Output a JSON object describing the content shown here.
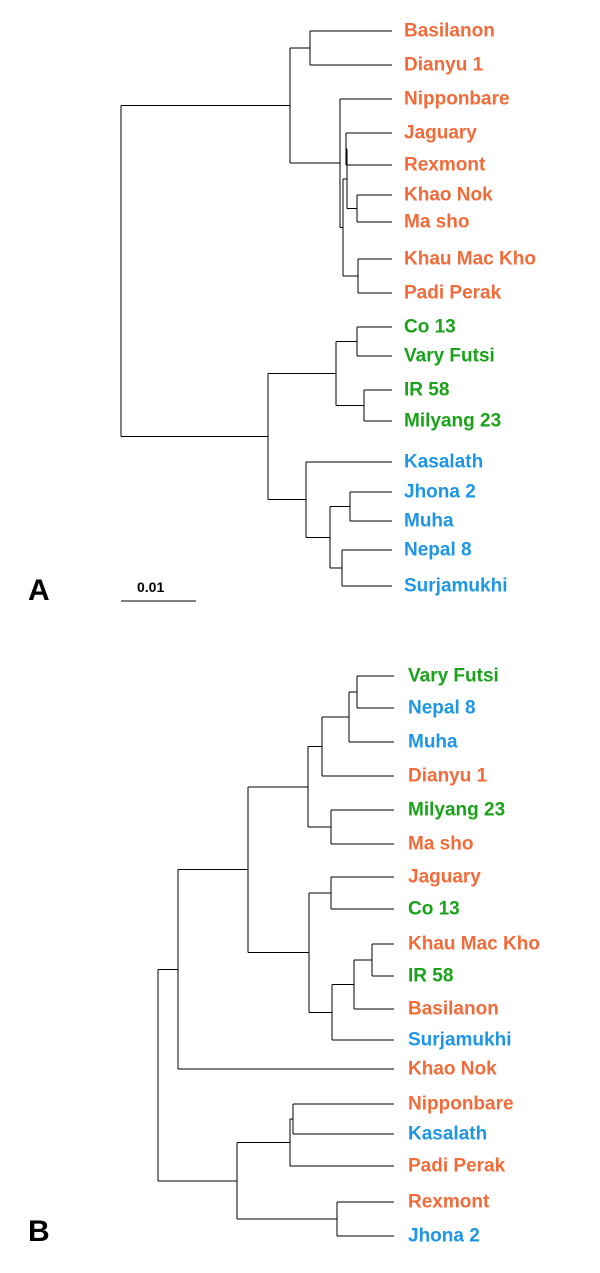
{
  "colors": {
    "group_1": "#f26b3a",
    "group_2": "#1aa31a",
    "group_3": "#1e96e6"
  },
  "panel_a": {
    "label": "A",
    "scale_label": "0.01",
    "leaves": [
      {
        "name": "Basilanon",
        "group": "group_1"
      },
      {
        "name": "Dianyu 1",
        "group": "group_1"
      },
      {
        "name": "Nipponbare",
        "group": "group_1"
      },
      {
        "name": "Jaguary",
        "group": "group_1"
      },
      {
        "name": "Rexmont",
        "group": "group_1"
      },
      {
        "name": "Khao Nok",
        "group": "group_1"
      },
      {
        "name": "Ma sho",
        "group": "group_1"
      },
      {
        "name": "Khau Mac Kho",
        "group": "group_1"
      },
      {
        "name": "Padi Perak",
        "group": "group_1"
      },
      {
        "name": "Co 13",
        "group": "group_2"
      },
      {
        "name": "Vary Futsi",
        "group": "group_2"
      },
      {
        "name": "IR 58",
        "group": "group_2"
      },
      {
        "name": "Milyang 23",
        "group": "group_2"
      },
      {
        "name": "Kasalath",
        "group": "group_3"
      },
      {
        "name": "Jhona 2",
        "group": "group_3"
      },
      {
        "name": "Muha",
        "group": "group_3"
      },
      {
        "name": "Nepal 8",
        "group": "group_3"
      },
      {
        "name": "Surjamukhi",
        "group": "group_3"
      }
    ]
  },
  "panel_b": {
    "label": "B",
    "leaves": [
      {
        "name": "Vary Futsi",
        "group": "group_2"
      },
      {
        "name": "Nepal 8",
        "group": "group_3"
      },
      {
        "name": "Muha",
        "group": "group_3"
      },
      {
        "name": "Dianyu 1",
        "group": "group_1"
      },
      {
        "name": "Milyang 23",
        "group": "group_2"
      },
      {
        "name": "Ma sho",
        "group": "group_1"
      },
      {
        "name": "Jaguary",
        "group": "group_1"
      },
      {
        "name": "Co 13",
        "group": "group_2"
      },
      {
        "name": "Khau Mac Kho",
        "group": "group_1"
      },
      {
        "name": "IR 58",
        "group": "group_2"
      },
      {
        "name": "Basilanon",
        "group": "group_1"
      },
      {
        "name": "Surjamukhi",
        "group": "group_3"
      },
      {
        "name": "Khao Nok",
        "group": "group_1"
      },
      {
        "name": "Nipponbare",
        "group": "group_1"
      },
      {
        "name": "Kasalath",
        "group": "group_3"
      },
      {
        "name": "Padi Perak",
        "group": "group_1"
      },
      {
        "name": "Rexmont",
        "group": "group_1"
      },
      {
        "name": "Jhona 2",
        "group": "group_3"
      }
    ]
  }
}
